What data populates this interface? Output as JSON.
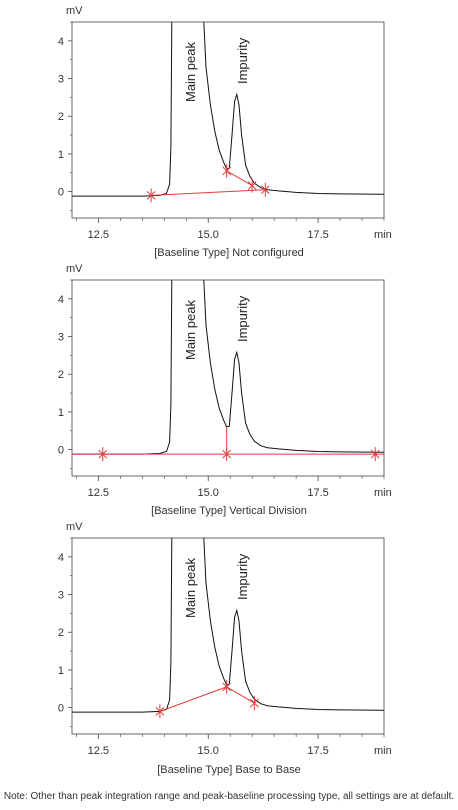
{
  "note": "Note: Other than peak integration range and peak-baseline processing type, all settings are at default.",
  "chart_data": [
    {
      "type": "line",
      "caption": "[Baseline Type] Not configured",
      "y_unit": "mV",
      "x_unit": "min",
      "xlim": [
        11.9,
        19.0
      ],
      "ylim": [
        -0.7,
        4.5
      ],
      "x_ticks": [
        12.5,
        15.0,
        17.5
      ],
      "y_ticks": [
        0,
        1,
        2,
        3,
        4
      ],
      "peaks": [
        {
          "label": "Main peak",
          "x": 14.7
        },
        {
          "label": "Impurity",
          "x": 15.65
        }
      ],
      "trace": {
        "points": [
          [
            11.9,
            -0.12
          ],
          [
            13.5,
            -0.12
          ],
          [
            13.9,
            -0.1
          ],
          [
            14.05,
            -0.05
          ],
          [
            14.12,
            0.2
          ],
          [
            14.15,
            1.2
          ],
          [
            14.17,
            4.5
          ]
        ],
        "tail": [
          [
            14.9,
            4.5
          ],
          [
            14.95,
            3.3
          ],
          [
            15.05,
            2.3
          ],
          [
            15.15,
            1.6
          ],
          [
            15.25,
            1.1
          ],
          [
            15.35,
            0.78
          ],
          [
            15.42,
            0.6
          ],
          [
            15.48,
            0.62
          ],
          [
            15.54,
            1.5
          ],
          [
            15.6,
            2.4
          ],
          [
            15.65,
            2.58
          ],
          [
            15.7,
            2.3
          ],
          [
            15.76,
            1.5
          ],
          [
            15.85,
            0.7
          ],
          [
            15.95,
            0.4
          ],
          [
            16.05,
            0.22
          ],
          [
            16.2,
            0.1
          ],
          [
            16.35,
            0.05
          ],
          [
            16.6,
            0.02
          ],
          [
            17.0,
            -0.02
          ],
          [
            17.5,
            -0.05
          ],
          [
            18.0,
            -0.06
          ],
          [
            19.0,
            -0.07
          ]
        ]
      },
      "baselines": [
        [
          [
            13.7,
            -0.1
          ],
          [
            16.3,
            0.05
          ]
        ],
        [
          [
            15.42,
            0.55
          ],
          [
            16.0,
            0.16
          ]
        ]
      ],
      "markers": [
        [
          13.7,
          -0.1
        ],
        [
          15.42,
          0.55
        ],
        [
          16.0,
          0.16
        ],
        [
          16.3,
          0.05
        ]
      ]
    },
    {
      "type": "line",
      "caption": "[Baseline Type] Vertical Division",
      "y_unit": "mV",
      "x_unit": "min",
      "xlim": [
        11.9,
        19.0
      ],
      "ylim": [
        -0.7,
        4.5
      ],
      "x_ticks": [
        12.5,
        15.0,
        17.5
      ],
      "y_ticks": [
        0,
        1,
        2,
        3,
        4
      ],
      "peaks": [
        {
          "label": "Main peak",
          "x": 14.7
        },
        {
          "label": "Impurity",
          "x": 15.65
        }
      ],
      "trace": {
        "points": [
          [
            11.9,
            -0.12
          ],
          [
            13.5,
            -0.12
          ],
          [
            13.9,
            -0.1
          ],
          [
            14.05,
            -0.05
          ],
          [
            14.12,
            0.2
          ],
          [
            14.15,
            1.2
          ],
          [
            14.17,
            4.5
          ]
        ],
        "tail": [
          [
            14.9,
            4.5
          ],
          [
            14.95,
            3.3
          ],
          [
            15.05,
            2.3
          ],
          [
            15.15,
            1.6
          ],
          [
            15.25,
            1.1
          ],
          [
            15.35,
            0.78
          ],
          [
            15.42,
            0.6
          ],
          [
            15.48,
            0.62
          ],
          [
            15.54,
            1.5
          ],
          [
            15.6,
            2.4
          ],
          [
            15.65,
            2.58
          ],
          [
            15.7,
            2.3
          ],
          [
            15.76,
            1.5
          ],
          [
            15.85,
            0.7
          ],
          [
            15.95,
            0.4
          ],
          [
            16.05,
            0.22
          ],
          [
            16.2,
            0.1
          ],
          [
            16.35,
            0.05
          ],
          [
            16.6,
            0.02
          ],
          [
            17.0,
            -0.02
          ],
          [
            17.5,
            -0.05
          ],
          [
            18.0,
            -0.06
          ],
          [
            19.0,
            -0.07
          ]
        ]
      },
      "baselines": [
        [
          [
            11.9,
            -0.12
          ],
          [
            19.0,
            -0.12
          ]
        ],
        [
          [
            15.42,
            -0.12
          ],
          [
            15.42,
            0.6
          ]
        ]
      ],
      "markers": [
        [
          12.6,
          -0.12
        ],
        [
          15.42,
          -0.12
        ],
        [
          18.8,
          -0.12
        ]
      ]
    },
    {
      "type": "line",
      "caption": "[Baseline Type] Base to Base",
      "y_unit": "mV",
      "x_unit": "min",
      "xlim": [
        11.9,
        19.0
      ],
      "ylim": [
        -0.7,
        4.5
      ],
      "x_ticks": [
        12.5,
        15.0,
        17.5
      ],
      "y_ticks": [
        0,
        1,
        2,
        3,
        4
      ],
      "peaks": [
        {
          "label": "Main peak",
          "x": 14.7
        },
        {
          "label": "Impurity",
          "x": 15.65
        }
      ],
      "trace": {
        "points": [
          [
            11.9,
            -0.12
          ],
          [
            13.5,
            -0.12
          ],
          [
            13.9,
            -0.1
          ],
          [
            14.05,
            -0.05
          ],
          [
            14.12,
            0.2
          ],
          [
            14.15,
            1.2
          ],
          [
            14.17,
            4.5
          ]
        ],
        "tail": [
          [
            14.9,
            4.5
          ],
          [
            14.95,
            3.3
          ],
          [
            15.05,
            2.3
          ],
          [
            15.15,
            1.6
          ],
          [
            15.25,
            1.1
          ],
          [
            15.35,
            0.78
          ],
          [
            15.42,
            0.6
          ],
          [
            15.48,
            0.62
          ],
          [
            15.54,
            1.5
          ],
          [
            15.6,
            2.4
          ],
          [
            15.65,
            2.58
          ],
          [
            15.7,
            2.3
          ],
          [
            15.76,
            1.5
          ],
          [
            15.85,
            0.7
          ],
          [
            15.95,
            0.4
          ],
          [
            16.05,
            0.22
          ],
          [
            16.2,
            0.1
          ],
          [
            16.35,
            0.05
          ],
          [
            16.6,
            0.02
          ],
          [
            17.0,
            -0.02
          ],
          [
            17.5,
            -0.05
          ],
          [
            18.0,
            -0.06
          ],
          [
            19.0,
            -0.07
          ]
        ]
      },
      "baselines": [
        [
          [
            13.9,
            -0.1
          ],
          [
            15.42,
            0.55
          ]
        ],
        [
          [
            15.42,
            0.55
          ],
          [
            16.05,
            0.12
          ]
        ]
      ],
      "markers": [
        [
          13.9,
          -0.1
        ],
        [
          15.42,
          0.55
        ],
        [
          16.05,
          0.12
        ]
      ]
    }
  ]
}
